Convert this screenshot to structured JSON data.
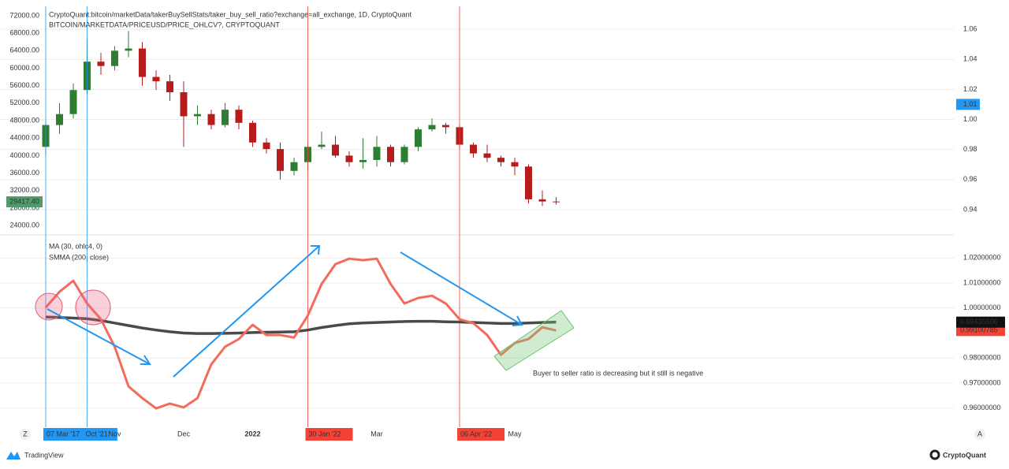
{
  "chart_data": [
    {
      "type": "candlestick",
      "title": "CryptoQuant:bitcoin/marketData/takerBuySellStats/taker_buy_sell_ratio?exchange=all_exchange, 1D, CryptoQuant",
      "subtitle": "BITCOIN/MARKETDATA/PRICEUSD/PRICE_OHLCV?, CRYPTOQUANT",
      "open": [
        42000,
        47000,
        49500,
        55000,
        61500,
        60500,
        64000,
        64500,
        58000,
        57000,
        54500,
        49000,
        49500,
        47000,
        50500,
        47500,
        43000,
        41500,
        36500,
        38500,
        42000,
        42500,
        40000,
        38500,
        39000,
        42000,
        38500,
        42000,
        46000,
        47000,
        46500,
        42500,
        40500,
        39500,
        38500,
        37500,
        30000,
        29500
      ],
      "high": [
        48000,
        52000,
        56500,
        66500,
        63500,
        65000,
        68500,
        66000,
        59500,
        58500,
        57000,
        51500,
        50500,
        52000,
        51500,
        48000,
        44000,
        43000,
        39500,
        43000,
        45500,
        44500,
        41000,
        44000,
        44500,
        42500,
        42500,
        46500,
        48500,
        47500,
        47000,
        43000,
        42500,
        40000,
        39500,
        38000,
        32000,
        30500
      ],
      "low": [
        40000,
        45000,
        48500,
        54000,
        58500,
        59500,
        62500,
        56000,
        55000,
        52500,
        42000,
        47000,
        46000,
        46500,
        46000,
        42000,
        40500,
        34500,
        35500,
        36500,
        41500,
        39500,
        37500,
        37000,
        37500,
        37500,
        38000,
        41000,
        45500,
        45000,
        41500,
        39500,
        38500,
        37500,
        35500,
        29000,
        28500,
        28800
      ],
      "close": [
        47000,
        49500,
        55000,
        61500,
        60500,
        64000,
        64500,
        58000,
        57000,
        54500,
        49000,
        49500,
        47000,
        50500,
        47500,
        43000,
        41500,
        36500,
        38500,
        42000,
        42500,
        40000,
        38500,
        39000,
        42000,
        38500,
        42000,
        46000,
        47000,
        46500,
        42500,
        40500,
        39500,
        38500,
        37500,
        30000,
        29500,
        29417.4
      ],
      "last_label": "29417.40",
      "up_color": "#2e7d32",
      "down_color": "#b71c1c",
      "ylim": [
        23300,
        73800
      ],
      "yticks": [
        {
          "value": 72000,
          "label": "72000.00"
        },
        {
          "value": 68000,
          "label": "68000.00"
        },
        {
          "value": 64000,
          "label": "64000.00"
        },
        {
          "value": 60000,
          "label": "60000.00"
        },
        {
          "value": 56000,
          "label": "56000.00"
        },
        {
          "value": 52000,
          "label": "52000.00"
        },
        {
          "value": 48000,
          "label": "48000.00"
        },
        {
          "value": 44000,
          "label": "44000.00"
        },
        {
          "value": 40000,
          "label": "40000.00"
        },
        {
          "value": 36000,
          "label": "36000.00"
        },
        {
          "value": 32000,
          "label": "32000.00"
        },
        {
          "value": 28000,
          "label": "28000.00"
        },
        {
          "value": 24000,
          "label": "24000.00"
        }
      ],
      "y2lim": [
        0.9274,
        1.0742
      ],
      "y2ticks": [
        1.06,
        1.04,
        1.02,
        {
          "value": 1,
          "label": "1.00"
        },
        0.98,
        0.96,
        0.94
      ],
      "y2_marker": 1.01,
      "grid": true
    },
    {
      "type": "line",
      "categories": [
        "07 Mar '17",
        null,
        null,
        "Oct '21",
        null,
        "Nov",
        null,
        null,
        null,
        null,
        "Dec",
        null,
        null,
        null,
        null,
        "2022",
        null,
        null,
        null,
        "30 Jan '22",
        null,
        null,
        null,
        null,
        "Mar",
        null,
        null,
        null,
        null,
        null,
        "06 Apr '22",
        null,
        null,
        null,
        "May",
        null,
        null,
        null
      ],
      "highlights": [
        {
          "index": 0,
          "color": "#2196f3"
        },
        {
          "index": 3,
          "color": "#2196f3"
        },
        {
          "index": 19,
          "color": "#f44336"
        },
        {
          "index": 30,
          "color": "#f44336"
        }
      ],
      "series": [
        {
          "name": "MA (30, ohlc4, 0)",
          "color": "#f26b5b",
          "values": [
            1.0002,
            1.0065,
            1.0109,
            1.0018,
            0.9955,
            0.9845,
            0.9687,
            0.964,
            0.9599,
            0.9618,
            0.9603,
            0.964,
            0.9775,
            0.9845,
            0.9876,
            0.9933,
            0.9892,
            0.9892,
            0.9882,
            0.997,
            1.0096,
            1.0175,
            1.0197,
            1.0191,
            1.0197,
            1.0096,
            1.0018,
            1.004,
            1.0049,
            1.0018,
            0.9955,
            0.9939,
            0.9892,
            0.9813,
            0.986,
            0.9876,
            0.9923,
            0.99100785
          ]
        },
        {
          "name": "SMMA (200, close)",
          "color": "#4a4a4a",
          "values": [
            0.9964,
            0.9962,
            0.996,
            0.9957,
            0.995,
            0.994,
            0.993,
            0.992,
            0.9912,
            0.9905,
            0.99,
            0.9898,
            0.9898,
            0.9899,
            0.99,
            0.9902,
            0.9903,
            0.9904,
            0.9905,
            0.9912,
            0.9922,
            0.993,
            0.9937,
            0.994,
            0.9942,
            0.9944,
            0.9946,
            0.9947,
            0.9947,
            0.9945,
            0.9944,
            0.9942,
            0.994,
            0.9938,
            0.9938,
            0.994,
            0.9942,
            0.99435506
          ]
        }
      ],
      "ylim": [
        0.953,
        1.027
      ],
      "yticks": [
        {
          "value": 1.02,
          "label": "1.02000000"
        },
        {
          "value": 1.01,
          "label": "1.01000000"
        },
        {
          "value": 1,
          "label": "1.00000000"
        },
        {
          "value": 0.98,
          "label": "0.98000000"
        },
        {
          "value": 0.97,
          "label": "0.97000000"
        },
        {
          "value": 0.96,
          "label": "0.96000000"
        }
      ],
      "annotation": "Buyer to seller ratio is decreasing but it still is negative",
      "grid": true
    }
  ],
  "ui": {
    "left_corner": "Z",
    "right_corner": "A",
    "brand_left": "TradingView",
    "brand_right": "CryptoQuant"
  }
}
